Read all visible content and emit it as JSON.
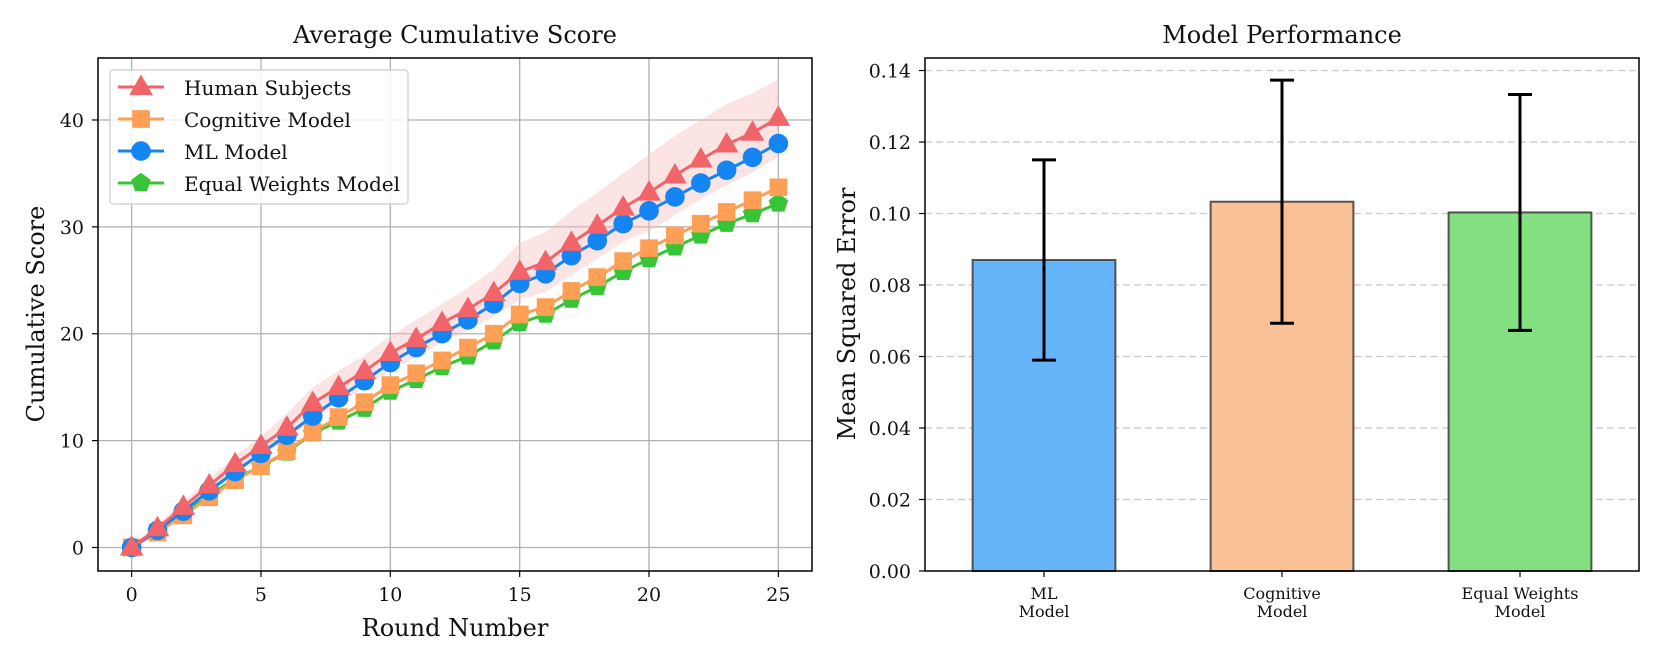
{
  "colors": {
    "human": "#f0646a",
    "human_band": "#f7b9bc",
    "cognitive": "#ff9f55",
    "ml": "#1585f3",
    "equal": "#37c537",
    "bar_ml": "#66b5fb",
    "bar_cognitive": "#fbc196",
    "bar_equal": "#83df7f"
  },
  "chart_data": [
    {
      "type": "line",
      "title": "Average Cumulative Score",
      "xlabel": "Round Number",
      "ylabel": "Cumulative Score",
      "xlim": [
        -1.3,
        26.3
      ],
      "ylim": [
        -2.2,
        45.8
      ],
      "xticks": [
        0,
        5,
        10,
        15,
        20,
        25
      ],
      "yticks": [
        0,
        10,
        20,
        30,
        40
      ],
      "grid": true,
      "legend": "top-left",
      "x": [
        0,
        1,
        2,
        3,
        4,
        5,
        6,
        7,
        8,
        9,
        10,
        11,
        12,
        13,
        14,
        15,
        16,
        17,
        18,
        19,
        20,
        21,
        22,
        23,
        24,
        25
      ],
      "series": [
        {
          "name": "Human Subjects",
          "marker": "triangle",
          "color_key": "human",
          "values": [
            0,
            1.8,
            3.8,
            5.8,
            7.8,
            9.5,
            11.2,
            13.5,
            15.0,
            16.5,
            18.2,
            19.5,
            21.0,
            22.3,
            23.8,
            25.8,
            26.7,
            28.5,
            30.1,
            31.8,
            33.2,
            34.8,
            36.3,
            37.7,
            38.8,
            40.2
          ],
          "band_upper": [
            0,
            2.2,
            4.3,
            6.4,
            8.6,
            10.4,
            12.5,
            15.0,
            16.5,
            18.0,
            19.8,
            21.3,
            22.8,
            24.3,
            26.0,
            28.5,
            29.5,
            31.5,
            33.2,
            35.0,
            36.8,
            38.5,
            40.0,
            41.5,
            42.5,
            43.8
          ],
          "band_lower": [
            0,
            1.4,
            3.3,
            5.2,
            7.0,
            8.6,
            10.0,
            12.0,
            13.5,
            15.0,
            16.6,
            17.8,
            19.2,
            20.3,
            21.6,
            23.2,
            23.9,
            25.5,
            27.0,
            28.6,
            29.6,
            31.1,
            32.6,
            33.9,
            35.1,
            36.6
          ]
        },
        {
          "name": "Cognitive Model",
          "marker": "square",
          "color_key": "cognitive",
          "values": [
            0,
            1.4,
            3.0,
            4.7,
            6.3,
            7.6,
            9.0,
            10.8,
            12.2,
            13.6,
            15.2,
            16.3,
            17.5,
            18.7,
            20.0,
            21.8,
            22.5,
            24.0,
            25.3,
            26.8,
            28.0,
            29.2,
            30.3,
            31.4,
            32.5,
            33.7
          ]
        },
        {
          "name": "ML Model",
          "marker": "circle",
          "color_key": "ml",
          "values": [
            0,
            1.6,
            3.4,
            5.3,
            7.1,
            8.8,
            10.5,
            12.3,
            14.0,
            15.6,
            17.3,
            18.7,
            20.0,
            21.3,
            22.8,
            24.7,
            25.6,
            27.3,
            28.7,
            30.3,
            31.5,
            32.8,
            34.1,
            35.3,
            36.5,
            37.8
          ]
        },
        {
          "name": "Equal Weights Model",
          "marker": "pentagon",
          "color_key": "equal",
          "values": [
            0,
            1.5,
            3.1,
            4.9,
            6.4,
            7.6,
            8.9,
            10.7,
            11.8,
            13.0,
            14.6,
            15.7,
            16.9,
            17.9,
            19.3,
            21.0,
            21.8,
            23.2,
            24.4,
            25.8,
            27.0,
            28.1,
            29.2,
            30.3,
            31.2,
            32.2
          ]
        }
      ]
    },
    {
      "type": "bar",
      "title": "Model Performance",
      "xlabel": "",
      "ylabel": "Mean Squared Error",
      "ylim": [
        0,
        0.1435
      ],
      "yticks": [
        "0.00",
        "0.02",
        "0.04",
        "0.06",
        "0.08",
        "0.10",
        "0.12",
        "0.14"
      ],
      "grid": "horizontal dashed",
      "categories": [
        {
          "line1": "ML",
          "line2": "Model",
          "color_key": "bar_ml"
        },
        {
          "line1": "Cognitive",
          "line2": "Model",
          "color_key": "bar_cognitive"
        },
        {
          "line1": "Equal Weights",
          "line2": "Model",
          "color_key": "bar_equal"
        }
      ],
      "values": [
        0.087,
        0.1033,
        0.1003
      ],
      "errors": [
        0.028,
        0.034,
        0.033
      ]
    }
  ]
}
